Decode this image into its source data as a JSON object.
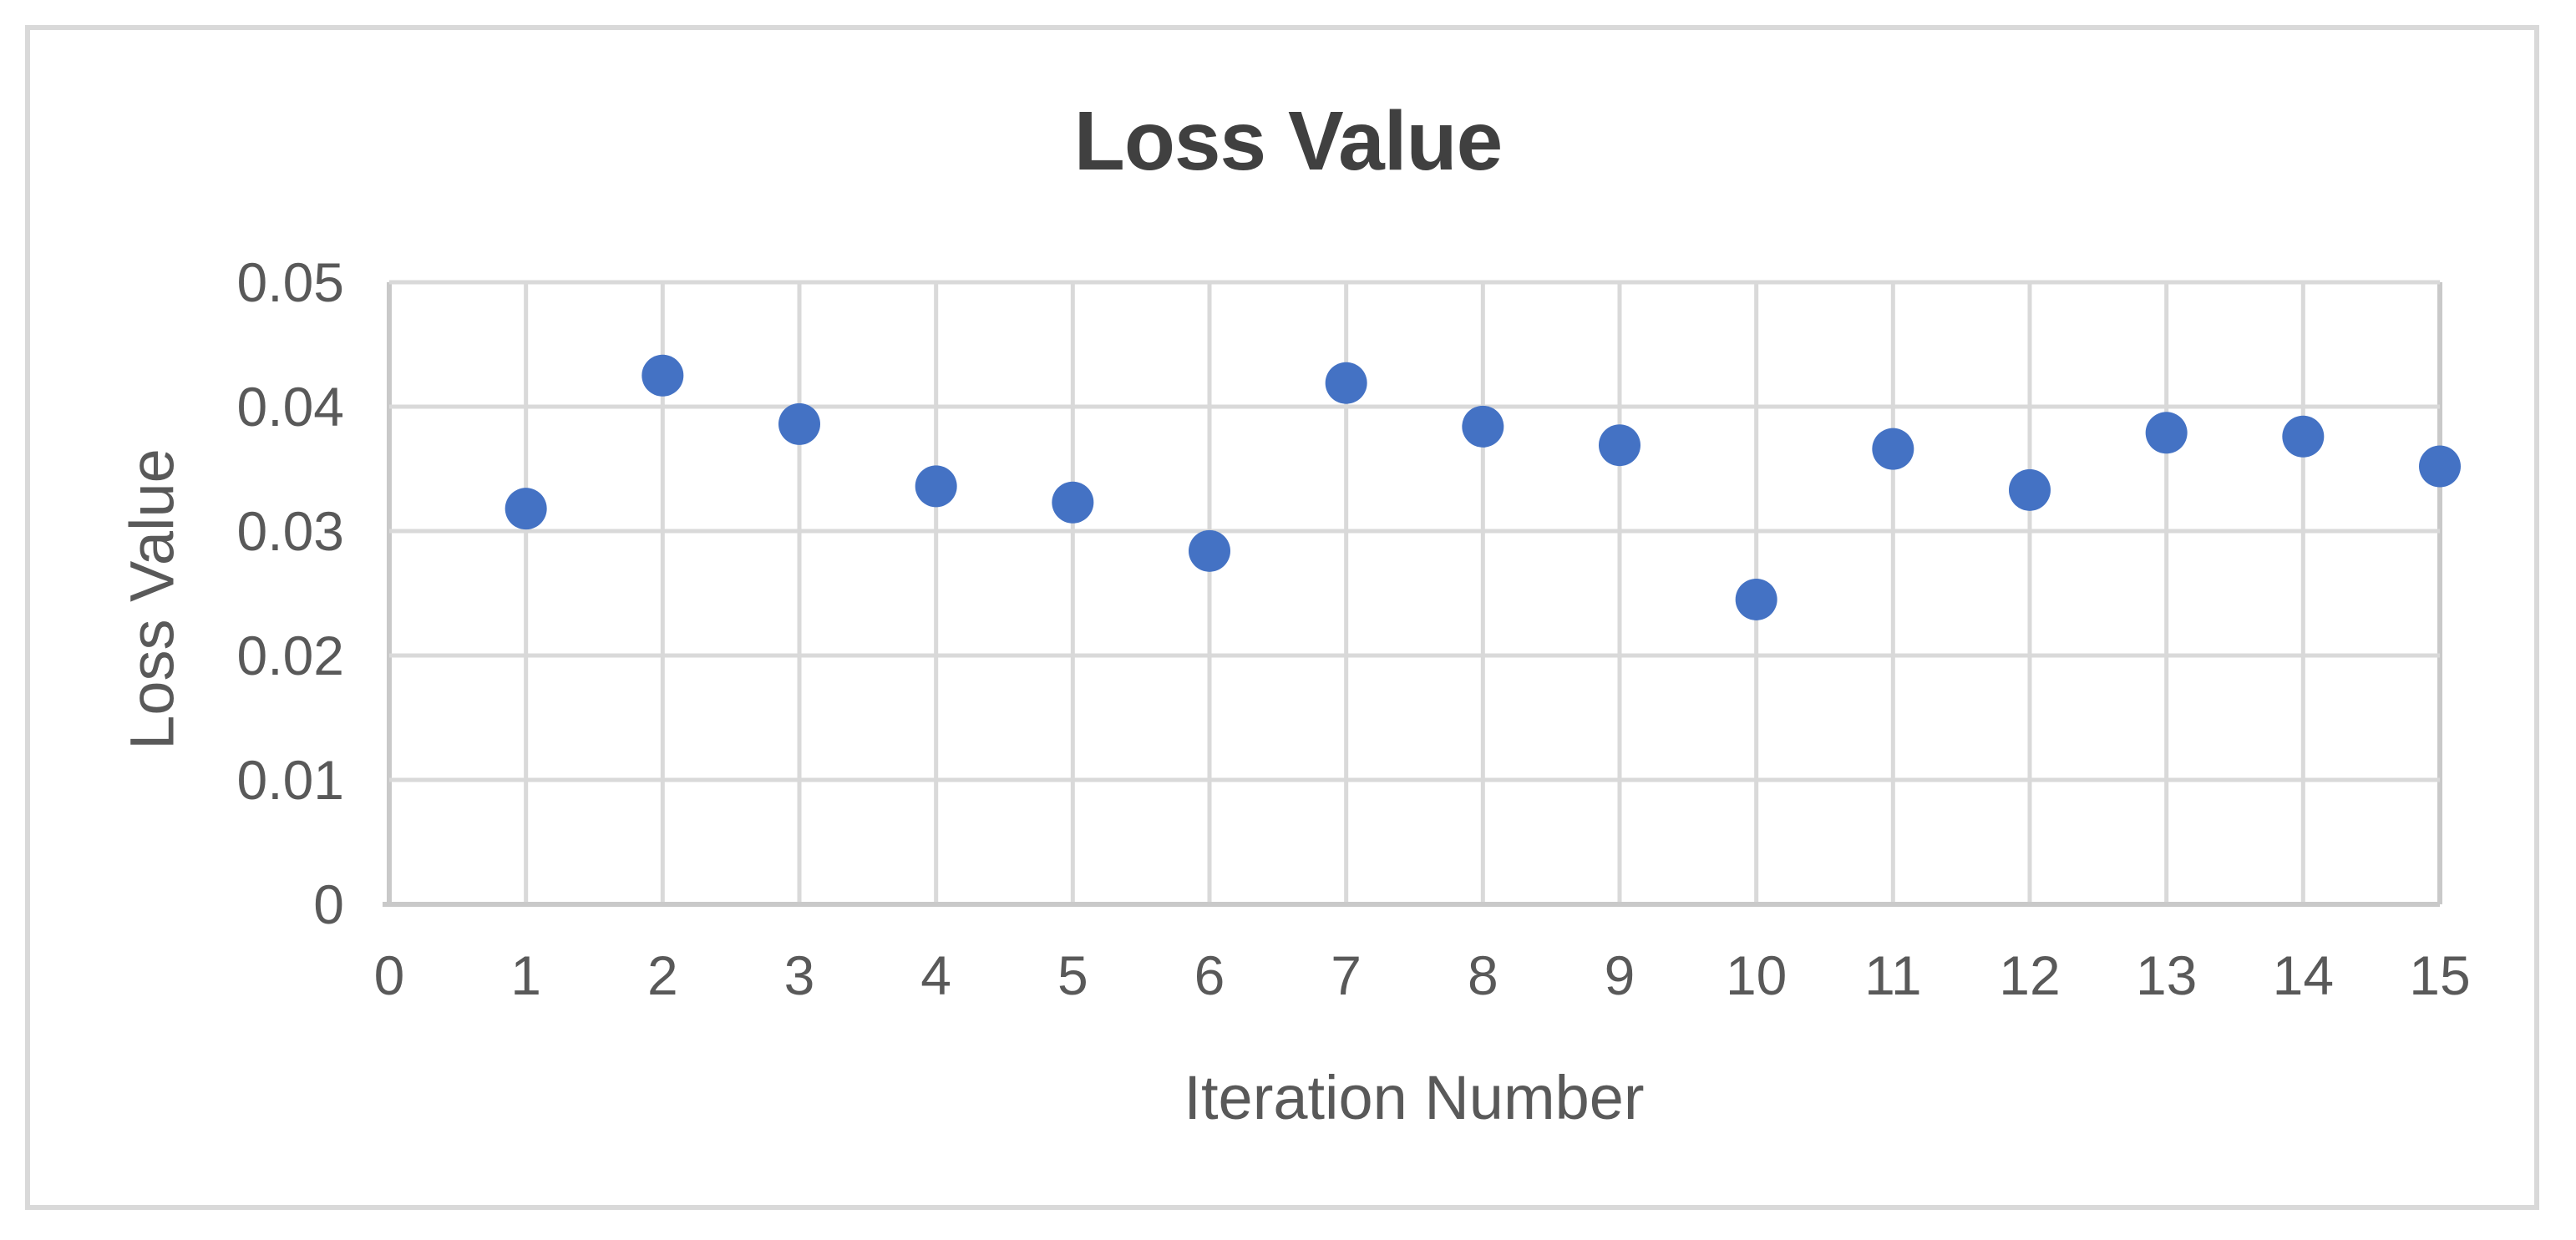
{
  "chart_data": {
    "type": "scatter",
    "title": "Loss Value",
    "xlabel": "Iteration Number",
    "ylabel": "Loss Value",
    "x": [
      1,
      2,
      3,
      4,
      5,
      6,
      7,
      8,
      9,
      10,
      11,
      12,
      13,
      14,
      15
    ],
    "y": [
      0.0318,
      0.0425,
      0.0386,
      0.0336,
      0.0323,
      0.0284,
      0.0419,
      0.0384,
      0.0369,
      0.0245,
      0.0366,
      0.0333,
      0.0379,
      0.0376,
      0.0352
    ],
    "xlim": [
      0,
      15
    ],
    "ylim": [
      0,
      0.05
    ],
    "x_ticks": [
      0,
      1,
      2,
      3,
      4,
      5,
      6,
      7,
      8,
      9,
      10,
      11,
      12,
      13,
      14,
      15
    ],
    "x_tick_labels": [
      "0",
      "1",
      "2",
      "3",
      "4",
      "5",
      "6",
      "7",
      "8",
      "9",
      "10",
      "11",
      "12",
      "13",
      "14",
      "15"
    ],
    "y_ticks": [
      0,
      0.01,
      0.02,
      0.03,
      0.04,
      0.05
    ],
    "y_tick_labels": [
      "0",
      "0.01",
      "0.02",
      "0.03",
      "0.04",
      "0.05"
    ],
    "grid": true,
    "legend": "none",
    "colors": {
      "marker": "#4472C4",
      "gridline": "#D9D9D9",
      "axis_line": "#C9C9C9",
      "tick_text": "#595959",
      "axis_title_text": "#595959",
      "title_text": "#404040",
      "chart_border": "#D9D9D9",
      "background": "#FFFFFF"
    }
  }
}
